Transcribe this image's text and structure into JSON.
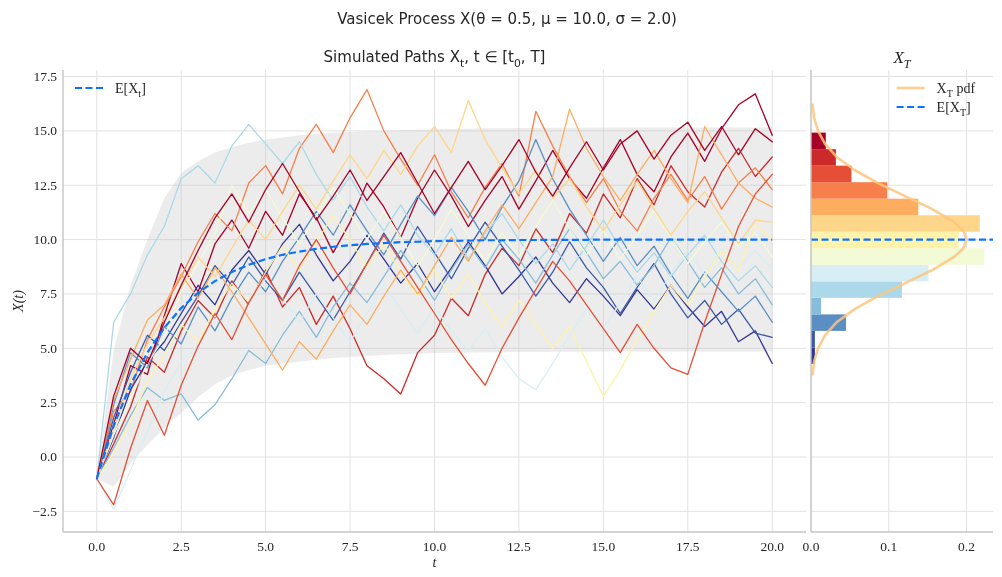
{
  "chart_data": [
    {
      "type": "line",
      "title": "Vasicek Process X(θ = 0.5, μ = 10.0, σ = 2.0)",
      "subtitle": "Simulated Paths X$_{t}$, t ∈ [t$_{0}$, T]",
      "xlabel": "t",
      "ylabel": "X(t)",
      "x": [
        0,
        0.5,
        1,
        1.5,
        2,
        2.5,
        3,
        3.5,
        4,
        4.5,
        5,
        5.5,
        6,
        6.5,
        7,
        7.5,
        8,
        8.5,
        9,
        9.5,
        10,
        10.5,
        11,
        11.5,
        12,
        12.5,
        13,
        13.5,
        14,
        14.5,
        15,
        15.5,
        16,
        16.5,
        17,
        17.5,
        18,
        18.5,
        19,
        19.5,
        20
      ],
      "xlim": [
        -1,
        21
      ],
      "xticks": [
        {
          "value": 0,
          "label": "0.0"
        },
        2.5,
        {
          "value": 5,
          "label": "5.0"
        },
        7.5,
        {
          "value": 10,
          "label": "10.0"
        },
        12.5,
        {
          "value": 15,
          "label": "15.0"
        },
        17.5,
        {
          "value": 20,
          "label": "20.0"
        }
      ],
      "ylim": [
        -3.45,
        17.8
      ],
      "yticks": [
        {
          "value": -2.5,
          "label": "−2.5"
        },
        {
          "value": 0,
          "label": "0.0"
        },
        2.5,
        {
          "value": 5,
          "label": "5.0"
        },
        7.5,
        {
          "value": 10,
          "label": "10.0"
        },
        12.5,
        {
          "value": 15,
          "label": "15.0"
        },
        17.5
      ],
      "grid": true,
      "legend": "top left",
      "series": [
        {
          "color": "#a50026",
          "values": [
            -1,
            1.5,
            4.2,
            3.8,
            6.5,
            8.9,
            7.6,
            9.8,
            10.9,
            9.6,
            11.3,
            10.2,
            12.1,
            11.0,
            9.4,
            10.8,
            12.6,
            11.5,
            10.1,
            11.9,
            13.2,
            12.0,
            10.6,
            11.8,
            12.9,
            11.4,
            12.7,
            14.1,
            12.8,
            11.9,
            13.3,
            14.6,
            13.0,
            12.2,
            13.8,
            14.9,
            13.6,
            15.1,
            16.2,
            16.7,
            14.8
          ]
        },
        {
          "color": "#cb2a2a",
          "values": [
            -1,
            0.6,
            2.3,
            4.6,
            3.9,
            5.8,
            7.2,
            6.4,
            8.1,
            7.0,
            8.6,
            6.9,
            7.8,
            6.1,
            7.4,
            5.9,
            4.2,
            3.6,
            2.9,
            4.8,
            5.6,
            7.3,
            6.5,
            8.4,
            9.6,
            8.8,
            10.5,
            9.4,
            11.2,
            10.3,
            12.1,
            11.0,
            12.8,
            11.6,
            13.4,
            12.2,
            11.5,
            13.1,
            14.2,
            12.9,
            13.8
          ]
        },
        {
          "color": "#f67f4b",
          "values": [
            -1,
            2.1,
            3.0,
            5.4,
            6.9,
            8.3,
            9.9,
            11.2,
            10.4,
            12.6,
            13.4,
            12.1,
            14.2,
            15.3,
            14.0,
            15.6,
            16.9,
            15.0,
            13.7,
            12.5,
            13.9,
            12.2,
            11.0,
            12.4,
            13.5,
            12.0,
            15.9,
            14.3,
            12.9,
            11.7,
            12.8,
            11.3,
            10.4,
            11.9,
            13.0,
            11.8,
            12.9,
            11.4,
            12.6,
            13.3,
            12.3
          ]
        },
        {
          "color": "#313695",
          "values": [
            -1,
            0.9,
            3.1,
            4.4,
            5.3,
            6.6,
            7.9,
            7.0,
            8.6,
            9.5,
            8.4,
            9.8,
            10.7,
            9.3,
            8.1,
            9.0,
            10.2,
            9.1,
            8.0,
            8.9,
            7.6,
            8.7,
            9.9,
            8.8,
            7.5,
            8.3,
            9.2,
            8.0,
            7.1,
            8.2,
            7.4,
            6.5,
            7.7,
            6.8,
            7.9,
            6.9,
            6.0,
            6.7,
            5.3,
            5.8,
            4.3
          ]
        },
        {
          "color": "#3c59a6",
          "values": [
            -1,
            1.8,
            3.9,
            5.6,
            4.9,
            6.2,
            7.4,
            8.8,
            7.9,
            9.2,
            8.1,
            7.2,
            8.5,
            7.4,
            6.3,
            7.6,
            8.9,
            10.3,
            9.1,
            10.6,
            9.4,
            8.2,
            9.6,
            10.8,
            9.7,
            8.6,
            7.4,
            8.5,
            9.9,
            8.7,
            7.8,
            6.6,
            7.8,
            8.9,
            7.5,
            6.4,
            7.2,
            6.1,
            6.8,
            5.7,
            5.5
          ]
        },
        {
          "color": "#5b8fc3",
          "values": [
            -1,
            2.4,
            4.8,
            4.1,
            6.0,
            5.2,
            6.9,
            5.8,
            7.3,
            8.5,
            7.6,
            9.0,
            10.1,
            11.3,
            10.2,
            11.6,
            10.4,
            9.3,
            10.7,
            12.0,
            11.1,
            12.4,
            11.3,
            10.0,
            11.5,
            12.7,
            14.6,
            12.8,
            11.4,
            10.2,
            9.0,
            10.1,
            8.8,
            9.7,
            8.4,
            7.3,
            8.5,
            7.6,
            6.7,
            7.4,
            6.2
          ]
        },
        {
          "color": "#86bddb",
          "values": [
            -1,
            0.4,
            1.9,
            3.2,
            2.6,
            2.9,
            1.7,
            2.4,
            3.6,
            4.9,
            4.3,
            5.6,
            6.7,
            5.5,
            6.9,
            8.0,
            7.1,
            8.3,
            9.5,
            8.4,
            7.2,
            8.6,
            9.8,
            8.7,
            10.0,
            9.1,
            8.0,
            9.3,
            10.5,
            9.4,
            8.2,
            9.0,
            7.9,
            8.8,
            10.1,
            9.0,
            7.8,
            8.7,
            7.5,
            8.2,
            7.0
          ]
        },
        {
          "color": "#abd9e9",
          "values": [
            -1,
            6.2,
            7.5,
            9.3,
            10.6,
            12.8,
            13.4,
            12.6,
            14.3,
            15.3,
            14.4,
            13.5,
            14.5,
            13.0,
            11.8,
            12.9,
            11.5,
            10.4,
            11.6,
            10.2,
            9.3,
            10.5,
            9.1,
            10.3,
            11.2,
            10.0,
            8.9,
            9.8,
            8.6,
            9.7,
            10.9,
            9.6,
            8.5,
            9.4,
            8.3,
            9.3,
            10.2,
            9.0,
            8.1,
            8.8,
            7.8
          ]
        },
        {
          "color": "#d7eef5",
          "values": [
            -1,
            -2.4,
            -0.6,
            1.2,
            3.0,
            4.4,
            5.1,
            6.5,
            5.7,
            7.0,
            8.2,
            7.3,
            6.2,
            7.5,
            6.4,
            5.3,
            6.6,
            7.9,
            6.8,
            5.7,
            6.9,
            5.8,
            4.9,
            5.9,
            4.6,
            3.6,
            3.1,
            4.3,
            5.6,
            6.8,
            5.9,
            7.1,
            8.3,
            7.2,
            8.4,
            9.5,
            8.4,
            9.6,
            8.7,
            9.5,
            8.6
          ]
        },
        {
          "color": "#f2fad6",
          "values": [
            -1,
            1.0,
            2.7,
            4.3,
            5.5,
            7.6,
            8.9,
            10.3,
            12.5,
            11.2,
            12.3,
            11.0,
            9.8,
            11.1,
            12.4,
            11.2,
            10.0,
            11.3,
            10.1,
            8.8,
            10.0,
            11.4,
            10.2,
            9.0,
            10.3,
            9.2,
            10.6,
            11.8,
            10.5,
            9.3,
            10.4,
            9.1,
            10.2,
            11.3,
            10.1,
            8.9,
            9.9,
            10.8,
            9.7,
            10.3,
            9.2
          ]
        },
        {
          "color": "#fff2aa",
          "values": [
            -1,
            0.2,
            1.6,
            3.5,
            4.7,
            6.1,
            5.3,
            6.8,
            8.0,
            7.1,
            8.5,
            9.7,
            8.6,
            9.9,
            11.1,
            10.0,
            8.7,
            9.8,
            8.5,
            7.4,
            8.6,
            7.3,
            8.4,
            7.1,
            6.0,
            7.2,
            6.1,
            5.0,
            6.0,
            4.4,
            2.8,
            4.0,
            5.4,
            6.7,
            7.9,
            7.0,
            8.3,
            9.5,
            8.6,
            10.7,
            10.0
          ]
        },
        {
          "color": "#fed689",
          "values": [
            -1,
            1.3,
            3.6,
            5.2,
            6.4,
            7.8,
            9.2,
            8.3,
            9.6,
            10.9,
            10.0,
            11.3,
            12.5,
            11.4,
            12.7,
            13.9,
            12.8,
            14.1,
            13.0,
            14.3,
            15.2,
            14.0,
            16.4,
            14.6,
            13.3,
            12.1,
            13.2,
            11.9,
            12.8,
            11.5,
            10.4,
            11.6,
            12.7,
            11.4,
            10.2,
            11.3,
            12.2,
            11.0,
            9.8,
            10.9,
            10.8
          ]
        },
        {
          "color": "#fdad60",
          "values": [
            -1,
            2.6,
            4.5,
            6.3,
            7.0,
            8.4,
            7.3,
            8.7,
            7.6,
            6.4,
            5.2,
            4.0,
            5.3,
            4.5,
            5.8,
            7.0,
            6.1,
            7.4,
            8.6,
            7.5,
            8.8,
            10.1,
            9.0,
            10.4,
            11.6,
            10.5,
            11.7,
            12.9,
            16.0,
            14.2,
            12.9,
            11.8,
            13.0,
            14.1,
            12.8,
            11.7,
            15.2,
            13.9,
            12.6,
            11.9,
            11.5
          ]
        },
        {
          "color": "#e54f35",
          "values": [
            -1,
            -2.2,
            0.4,
            2.6,
            1.0,
            3.3,
            5.1,
            6.6,
            5.4,
            7.1,
            8.4,
            7.2,
            8.8,
            10.0,
            8.7,
            7.5,
            8.9,
            10.2,
            9.0,
            7.8,
            6.6,
            5.4,
            4.3,
            3.3,
            5.0,
            6.4,
            7.7,
            9.0,
            8.1,
            7.0,
            5.9,
            4.8,
            6.1,
            5.0,
            4.1,
            3.8,
            6.2,
            8.4,
            10.6,
            12.1,
            13.0
          ]
        },
        {
          "color": "#a50026",
          "values": [
            -1,
            2.8,
            5.0,
            4.3,
            6.2,
            7.9,
            9.5,
            11.0,
            12.1,
            10.8,
            12.3,
            13.5,
            12.2,
            10.9,
            12.0,
            13.2,
            11.8,
            12.9,
            14.0,
            12.6,
            11.2,
            12.4,
            13.6,
            12.3,
            13.4,
            14.6,
            13.1,
            12.0,
            13.3,
            14.5,
            13.2,
            14.4,
            15.0,
            13.7,
            14.8,
            15.4,
            14.1,
            15.2,
            13.9,
            15.1,
            14.5
          ]
        },
        {
          "name": "E[X$_{t}$]",
          "color": "#0a74ff",
          "line_style": "dashed",
          "values": [
            -1,
            1.43,
            3.33,
            4.8,
            5.95,
            6.85,
            7.55,
            8.09,
            8.51,
            8.84,
            9.1,
            9.3,
            9.45,
            9.57,
            9.67,
            9.74,
            9.8,
            9.84,
            9.88,
            9.9,
            9.93,
            9.94,
            9.95,
            9.97,
            9.97,
            9.98,
            9.98,
            9.99,
            9.99,
            9.99,
            10,
            10,
            10,
            10,
            10,
            10,
            10,
            10,
            10,
            10,
            10
          ],
          "lower": [
            -1,
            -1.37,
            -0.3,
            0.55,
            1.35,
            2.03,
            2.75,
            3.35,
            3.75,
            4.0,
            4.2,
            4.3,
            4.38,
            4.47,
            4.55,
            4.6,
            4.65,
            4.69,
            4.73,
            4.75,
            4.78,
            4.79,
            4.8,
            4.82,
            4.82,
            4.83,
            4.83,
            4.84,
            4.84,
            4.84,
            4.85,
            4.85,
            4.85,
            4.85,
            4.85,
            4.85,
            4.85,
            4.85,
            4.85,
            4.85,
            4.85
          ],
          "upper": [
            -1,
            4.9,
            7.9,
            10.0,
            11.9,
            13.07,
            13.6,
            14.0,
            14.25,
            14.45,
            14.6,
            14.7,
            14.8,
            14.87,
            14.92,
            14.95,
            14.98,
            15.0,
            15.03,
            15.05,
            15.08,
            15.09,
            15.1,
            15.12,
            15.12,
            15.13,
            15.13,
            15.14,
            15.14,
            15.14,
            15.15,
            15.15,
            15.15,
            15.15,
            15.15,
            15.15,
            15.15,
            15.15,
            15.15,
            15.15,
            15.15
          ]
        }
      ]
    },
    {
      "type": "histogram",
      "orientation": "horizontal",
      "title": "X$_{T}$",
      "bins": [
        4.28,
        5.04,
        5.8,
        6.56,
        7.32,
        8.08,
        8.84,
        9.6,
        10.36,
        11.12,
        11.88,
        12.64,
        13.4,
        14.16,
        14.92
      ],
      "values": [
        0.005,
        0.005,
        0.045,
        0.013,
        0.117,
        0.151,
        0.223,
        0.19,
        0.217,
        0.138,
        0.098,
        0.052,
        0.032,
        0.019
      ],
      "colors": [
        "#313695",
        "#3c59a6",
        "#5b8fc3",
        "#86bddb",
        "#abd9e9",
        "#d7eef5",
        "#f2fad6",
        "#fff2aa",
        "#fed689",
        "#fdad60",
        "#f67f4b",
        "#e54f35",
        "#cb2a2a",
        "#a50026"
      ],
      "xlim": [
        0,
        0.234
      ],
      "xticks": [
        {
          "value": 0,
          "label": "0.0"
        },
        0.1,
        0.2
      ],
      "ylim": [
        -3.45,
        17.8
      ],
      "yticks": [
        -2.5,
        0,
        2.5,
        5,
        7.5,
        10,
        12.5,
        15,
        17.5
      ],
      "tick_labels": "x",
      "grid": true,
      "legend": "top right",
      "series": [
        {
          "type": "line",
          "name": "X$_{T}$ pdf",
          "color": "#fec57e",
          "x": [
            3.8,
            4.4,
            5.0,
            5.6,
            6.2,
            6.8,
            7.4,
            8.0,
            8.6,
            9.2,
            9.6,
            10.0,
            10.4,
            10.8,
            11.4,
            12.0,
            12.6,
            13.2,
            13.8,
            14.4,
            15.0,
            15.6,
            16.2
          ],
          "values": [
            0.002,
            0.004,
            0.009,
            0.018,
            0.033,
            0.056,
            0.086,
            0.121,
            0.156,
            0.184,
            0.196,
            0.2,
            0.196,
            0.184,
            0.156,
            0.121,
            0.086,
            0.056,
            0.033,
            0.018,
            0.009,
            0.004,
            0.002
          ]
        }
      ],
      "ref_lines": [
        {
          "axis": "y",
          "value": 10,
          "label": "E[X$_{T}$]",
          "color": "#0a74ff",
          "line_style": "dashed"
        }
      ]
    }
  ]
}
